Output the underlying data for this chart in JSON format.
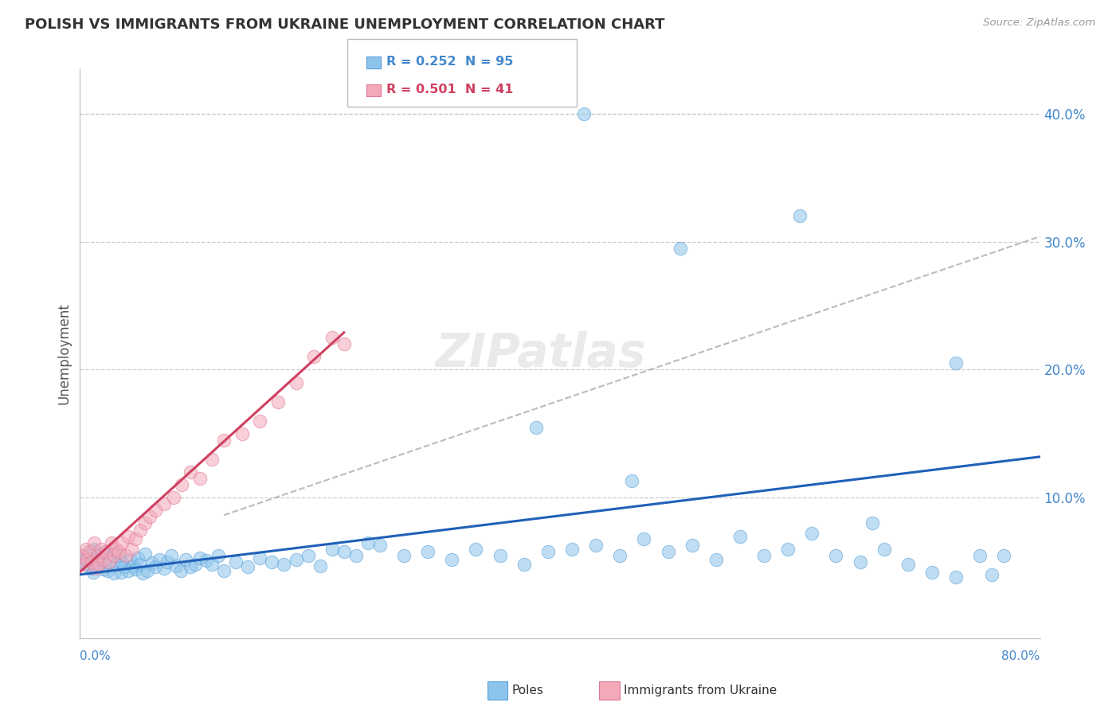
{
  "title": "POLISH VS IMMIGRANTS FROM UKRAINE UNEMPLOYMENT CORRELATION CHART",
  "source": "Source: ZipAtlas.com",
  "ylabel": "Unemployment",
  "xlim": [
    0,
    0.8
  ],
  "ylim": [
    -0.01,
    0.435
  ],
  "yticks": [
    0.0,
    0.1,
    0.2,
    0.3,
    0.4
  ],
  "ytick_labels": [
    "",
    "10.0%",
    "20.0%",
    "30.0%",
    "40.0%"
  ],
  "poles_color": "#8CC4EC",
  "poles_edge_color": "#5AA0D8",
  "ukraine_color": "#F4A8B8",
  "ukraine_edge_color": "#E07898",
  "poles_line_color": "#2060B8",
  "ukraine_line_color": "#D04060",
  "dashed_line_color": "#BBBBBB",
  "poles_R": 0.252,
  "poles_N": 95,
  "ukraine_R": 0.501,
  "ukraine_N": 41,
  "watermark": "ZIPatlas",
  "grid_color": "#CCCCCC",
  "tick_label_color": "#4488CC",
  "poles_x": [
    0.001,
    0.003,
    0.005,
    0.007,
    0.009,
    0.01,
    0.011,
    0.012,
    0.013,
    0.015,
    0.016,
    0.018,
    0.02,
    0.021,
    0.023,
    0.025,
    0.027,
    0.028,
    0.03,
    0.032,
    0.034,
    0.035,
    0.037,
    0.04,
    0.042,
    0.044,
    0.046,
    0.048,
    0.05,
    0.052,
    0.054,
    0.056,
    0.06,
    0.063,
    0.066,
    0.07,
    0.073,
    0.076,
    0.08,
    0.084,
    0.088,
    0.092,
    0.096,
    0.1,
    0.105,
    0.11,
    0.115,
    0.12,
    0.13,
    0.14,
    0.15,
    0.16,
    0.17,
    0.18,
    0.19,
    0.2,
    0.21,
    0.22,
    0.23,
    0.24,
    0.25,
    0.27,
    0.29,
    0.31,
    0.33,
    0.35,
    0.37,
    0.39,
    0.41,
    0.43,
    0.45,
    0.47,
    0.49,
    0.51,
    0.53,
    0.55,
    0.57,
    0.59,
    0.61,
    0.63,
    0.65,
    0.67,
    0.69,
    0.71,
    0.73,
    0.75,
    0.76,
    0.77,
    0.66,
    0.42,
    0.6,
    0.5,
    0.38,
    0.46,
    0.73
  ],
  "poles_y": [
    0.05,
    0.055,
    0.048,
    0.052,
    0.045,
    0.058,
    0.042,
    0.06,
    0.047,
    0.053,
    0.046,
    0.051,
    0.044,
    0.057,
    0.043,
    0.049,
    0.056,
    0.041,
    0.048,
    0.055,
    0.042,
    0.05,
    0.046,
    0.043,
    0.052,
    0.047,
    0.044,
    0.053,
    0.048,
    0.041,
    0.056,
    0.043,
    0.049,
    0.046,
    0.052,
    0.045,
    0.05,
    0.055,
    0.047,
    0.043,
    0.052,
    0.046,
    0.048,
    0.053,
    0.051,
    0.048,
    0.055,
    0.043,
    0.05,
    0.046,
    0.053,
    0.05,
    0.048,
    0.052,
    0.055,
    0.047,
    0.06,
    0.058,
    0.055,
    0.065,
    0.063,
    0.055,
    0.058,
    0.052,
    0.06,
    0.055,
    0.048,
    0.058,
    0.06,
    0.063,
    0.055,
    0.068,
    0.058,
    0.063,
    0.052,
    0.07,
    0.055,
    0.06,
    0.072,
    0.055,
    0.05,
    0.06,
    0.048,
    0.042,
    0.038,
    0.055,
    0.04,
    0.055,
    0.08,
    0.4,
    0.32,
    0.295,
    0.155,
    0.113,
    0.205
  ],
  "ukraine_x": [
    0.001,
    0.003,
    0.005,
    0.006,
    0.008,
    0.01,
    0.012,
    0.013,
    0.015,
    0.016,
    0.018,
    0.02,
    0.022,
    0.024,
    0.026,
    0.028,
    0.03,
    0.032,
    0.035,
    0.038,
    0.04,
    0.043,
    0.046,
    0.05,
    0.054,
    0.058,
    0.063,
    0.07,
    0.078,
    0.085,
    0.092,
    0.1,
    0.11,
    0.12,
    0.135,
    0.15,
    0.165,
    0.18,
    0.195,
    0.21,
    0.22
  ],
  "ukraine_y": [
    0.055,
    0.048,
    0.06,
    0.052,
    0.058,
    0.05,
    0.065,
    0.045,
    0.055,
    0.048,
    0.06,
    0.052,
    0.058,
    0.05,
    0.065,
    0.055,
    0.06,
    0.058,
    0.065,
    0.055,
    0.07,
    0.06,
    0.068,
    0.075,
    0.08,
    0.085,
    0.09,
    0.095,
    0.1,
    0.11,
    0.12,
    0.115,
    0.13,
    0.145,
    0.15,
    0.16,
    0.175,
    0.19,
    0.21,
    0.225,
    0.22
  ]
}
